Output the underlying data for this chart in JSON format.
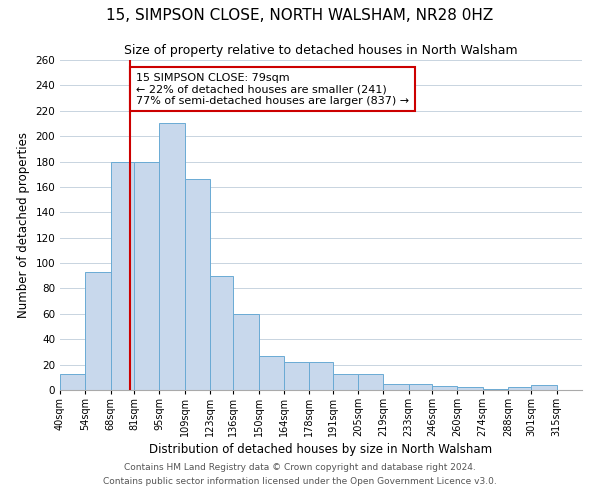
{
  "title": "15, SIMPSON CLOSE, NORTH WALSHAM, NR28 0HZ",
  "subtitle": "Size of property relative to detached houses in North Walsham",
  "xlabel": "Distribution of detached houses by size in North Walsham",
  "ylabel": "Number of detached properties",
  "footnote1": "Contains HM Land Registry data © Crown copyright and database right 2024.",
  "footnote2": "Contains public sector information licensed under the Open Government Licence v3.0.",
  "bar_left_edges": [
    40,
    54,
    68,
    81,
    95,
    109,
    123,
    136,
    150,
    164,
    178,
    191,
    205,
    219,
    233,
    246,
    260,
    274,
    288,
    301
  ],
  "bar_widths": [
    14,
    14,
    13,
    14,
    14,
    14,
    13,
    14,
    14,
    14,
    13,
    14,
    14,
    14,
    13,
    14,
    14,
    14,
    13,
    14
  ],
  "bar_heights": [
    13,
    93,
    180,
    180,
    210,
    166,
    90,
    60,
    27,
    22,
    22,
    13,
    13,
    5,
    5,
    3,
    2,
    1,
    2,
    4
  ],
  "tick_labels": [
    "40sqm",
    "54sqm",
    "68sqm",
    "81sqm",
    "95sqm",
    "109sqm",
    "123sqm",
    "136sqm",
    "150sqm",
    "164sqm",
    "178sqm",
    "191sqm",
    "205sqm",
    "219sqm",
    "233sqm",
    "246sqm",
    "260sqm",
    "274sqm",
    "288sqm",
    "301sqm",
    "315sqm"
  ],
  "tick_positions": [
    40,
    54,
    68,
    81,
    95,
    109,
    123,
    136,
    150,
    164,
    178,
    191,
    205,
    219,
    233,
    246,
    260,
    274,
    288,
    301,
    315
  ],
  "bar_color": "#c8d8ec",
  "bar_edge_color": "#6aaad4",
  "vline_x": 79,
  "vline_color": "#cc0000",
  "annotation_title": "15 SIMPSON CLOSE: 79sqm",
  "annotation_line1": "← 22% of detached houses are smaller (241)",
  "annotation_line2": "77% of semi-detached houses are larger (837) →",
  "annotation_box_color": "#ffffff",
  "annotation_box_edge": "#cc0000",
  "ylim": [
    0,
    260
  ],
  "xlim": [
    40,
    329
  ],
  "yticks": [
    0,
    20,
    40,
    60,
    80,
    100,
    120,
    140,
    160,
    180,
    200,
    220,
    240,
    260
  ],
  "bg_color": "#ffffff",
  "grid_color": "#c8d4e0",
  "title_fontsize": 11,
  "subtitle_fontsize": 9,
  "axis_label_fontsize": 8.5,
  "tick_fontsize": 7,
  "annotation_fontsize": 8,
  "footnote_fontsize": 6.5
}
